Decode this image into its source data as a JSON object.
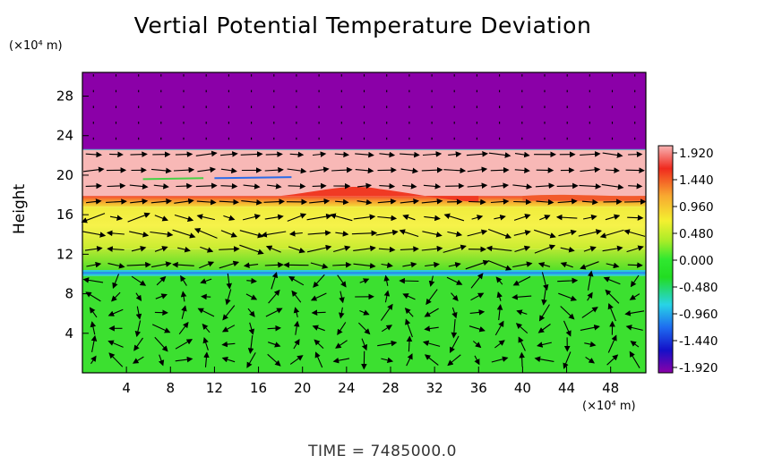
{
  "chart_data": {
    "type": "heatmap",
    "title": "Vertial Potential Temperature Deviation",
    "ylabel": "Height",
    "x_unit": "(×10⁴ m)",
    "y_unit": "(×10⁴ m)",
    "time_label": "TIME  =  7485000.0",
    "x_ticks": [
      4,
      8,
      12,
      16,
      20,
      24,
      28,
      32,
      36,
      40,
      44,
      48
    ],
    "y_ticks": [
      4,
      8,
      12,
      16,
      20,
      24,
      28
    ],
    "xlim": [
      0,
      51.2
    ],
    "ylim": [
      0,
      30.4
    ],
    "colorbar": {
      "ticks": [
        "1.920",
        "1.440",
        "0.960",
        "0.480",
        "0.000",
        "-0.480",
        "-0.960",
        "-1.440",
        "-1.920"
      ],
      "range": [
        -1.92,
        1.92
      ],
      "colors": [
        "#8b00a8",
        "#1410c8",
        "#1e6cf0",
        "#28d4e6",
        "#22dc22",
        "#30e830",
        "#a8ec28",
        "#f4f030",
        "#f8a830",
        "#f02a1e",
        "#f8b4b4"
      ]
    },
    "layers": [
      {
        "band": "upper-purple",
        "y0": 22.6,
        "y1": 30.4,
        "value": -1.92
      },
      {
        "band": "pink",
        "y0": 17.9,
        "y1": 22.6,
        "value": 1.92
      },
      {
        "band": "red-interface",
        "y0": 16.8,
        "y1": 17.9,
        "value": 1.5
      },
      {
        "band": "yellow",
        "y0": 12.5,
        "y1": 16.8,
        "value": 0.9
      },
      {
        "band": "yellow-green",
        "y0": 10.4,
        "y1": 12.5,
        "value": 0.5
      },
      {
        "band": "cyan-blue-line",
        "y0": 9.8,
        "y1": 10.4,
        "value": -0.7
      },
      {
        "band": "lower-green",
        "y0": 0,
        "y1": 9.8,
        "value": 0.1
      }
    ]
  }
}
